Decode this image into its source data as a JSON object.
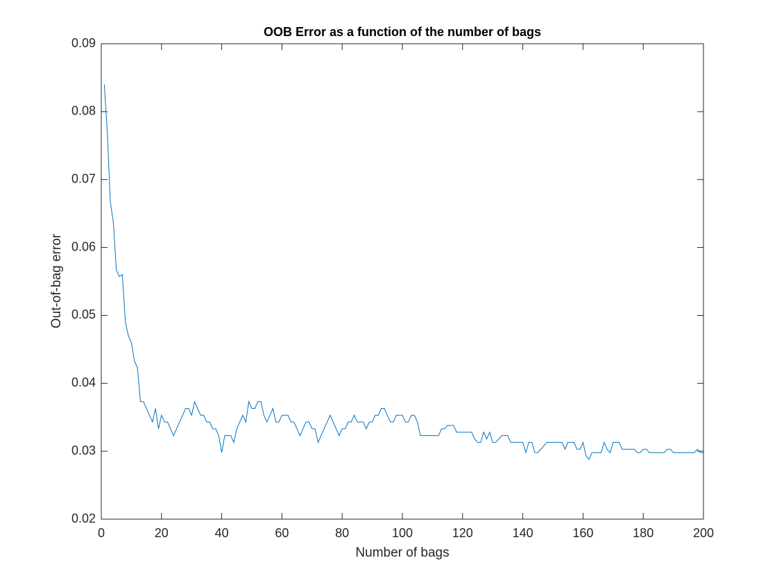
{
  "chart_data": {
    "type": "line",
    "title": "OOB Error as a function of the number of bags",
    "x_label": "Number of bags",
    "y_label": "Out-of-bag error",
    "x": [
      1,
      2,
      3,
      4,
      5,
      6,
      7,
      8,
      9,
      10,
      11,
      12,
      13,
      14,
      15,
      16,
      17,
      18,
      19,
      20,
      21,
      22,
      23,
      24,
      25,
      26,
      27,
      28,
      29,
      30,
      31,
      32,
      33,
      34,
      35,
      36,
      37,
      38,
      39,
      40,
      41,
      42,
      43,
      44,
      45,
      46,
      47,
      48,
      49,
      50,
      51,
      52,
      53,
      54,
      55,
      56,
      57,
      58,
      59,
      60,
      61,
      62,
      63,
      64,
      65,
      66,
      67,
      68,
      69,
      70,
      71,
      72,
      73,
      74,
      75,
      76,
      77,
      78,
      79,
      80,
      81,
      82,
      83,
      84,
      85,
      86,
      87,
      88,
      89,
      90,
      91,
      92,
      93,
      94,
      95,
      96,
      97,
      98,
      99,
      100,
      101,
      102,
      103,
      104,
      105,
      106,
      107,
      108,
      109,
      110,
      111,
      112,
      113,
      114,
      115,
      116,
      117,
      118,
      119,
      120,
      121,
      122,
      123,
      124,
      125,
      126,
      127,
      128,
      129,
      130,
      131,
      132,
      133,
      134,
      135,
      136,
      137,
      138,
      139,
      140,
      141,
      142,
      143,
      144,
      145,
      146,
      147,
      148,
      149,
      150,
      151,
      152,
      153,
      154,
      155,
      156,
      157,
      158,
      159,
      160,
      161,
      162,
      163,
      164,
      165,
      166,
      167,
      168,
      169,
      170,
      171,
      172,
      173,
      174,
      175,
      176,
      177,
      178,
      179,
      180,
      181,
      182,
      183,
      184,
      185,
      186,
      187,
      188,
      189,
      190,
      191,
      192,
      193,
      194,
      195,
      196,
      197,
      198,
      199,
      200
    ],
    "series": [
      {
        "name": "OOB error",
        "color": "#0072bd",
        "values": [
          0.084,
          0.077,
          0.0667,
          0.0637,
          0.0567,
          0.0557,
          0.056,
          0.049,
          0.047,
          0.046,
          0.0433,
          0.0423,
          0.0373,
          0.0373,
          0.0363,
          0.0353,
          0.0343,
          0.0363,
          0.0333,
          0.0353,
          0.0343,
          0.0343,
          0.0333,
          0.0323,
          0.0333,
          0.0343,
          0.0353,
          0.0363,
          0.0363,
          0.0353,
          0.0373,
          0.0363,
          0.0353,
          0.0353,
          0.0343,
          0.0343,
          0.0333,
          0.0333,
          0.0323,
          0.0298,
          0.0323,
          0.0323,
          0.0323,
          0.0313,
          0.0333,
          0.0343,
          0.0353,
          0.0343,
          0.0373,
          0.0363,
          0.0363,
          0.0373,
          0.0373,
          0.0353,
          0.0343,
          0.0353,
          0.0363,
          0.0343,
          0.0343,
          0.0353,
          0.0353,
          0.0353,
          0.0343,
          0.0343,
          0.0333,
          0.0323,
          0.0333,
          0.0343,
          0.0343,
          0.0333,
          0.0333,
          0.0313,
          0.0323,
          0.0333,
          0.0343,
          0.0353,
          0.0343,
          0.0333,
          0.0323,
          0.0333,
          0.0333,
          0.0343,
          0.0343,
          0.0353,
          0.0343,
          0.0343,
          0.0343,
          0.0333,
          0.0343,
          0.0343,
          0.0353,
          0.0353,
          0.0363,
          0.0363,
          0.0353,
          0.0343,
          0.0343,
          0.0353,
          0.0353,
          0.0353,
          0.0343,
          0.0343,
          0.0353,
          0.0353,
          0.0343,
          0.0323,
          0.0323,
          0.0323,
          0.0323,
          0.0323,
          0.0323,
          0.0323,
          0.0333,
          0.0333,
          0.0338,
          0.0338,
          0.0338,
          0.0328,
          0.0328,
          0.0328,
          0.0328,
          0.0328,
          0.0328,
          0.0318,
          0.0313,
          0.0313,
          0.0328,
          0.0318,
          0.0328,
          0.0313,
          0.0313,
          0.0318,
          0.0323,
          0.0323,
          0.0323,
          0.0313,
          0.0313,
          0.0313,
          0.0313,
          0.0313,
          0.0298,
          0.0313,
          0.0313,
          0.0298,
          0.0298,
          0.0303,
          0.0308,
          0.0313,
          0.0313,
          0.0313,
          0.0313,
          0.0313,
          0.0313,
          0.0303,
          0.0313,
          0.0313,
          0.0313,
          0.0303,
          0.0303,
          0.0313,
          0.0293,
          0.0288,
          0.0298,
          0.0298,
          0.0298,
          0.0298,
          0.0313,
          0.0303,
          0.0298,
          0.0313,
          0.0313,
          0.0313,
          0.0303,
          0.0303,
          0.0303,
          0.0303,
          0.0303,
          0.0298,
          0.0298,
          0.0303,
          0.0303,
          0.0298,
          0.0298,
          0.0298,
          0.0298,
          0.0298,
          0.0298,
          0.0303,
          0.0303,
          0.0298,
          0.0298,
          0.0298,
          0.0298,
          0.0298,
          0.0298,
          0.0298,
          0.0298,
          0.0303,
          0.0298,
          0.0298
        ]
      }
    ],
    "xlim": [
      0,
      200
    ],
    "xticks": [
      0,
      20,
      40,
      60,
      80,
      100,
      120,
      140,
      160,
      180,
      200
    ],
    "ylim": [
      0.02,
      0.09
    ],
    "yticks": [
      0.02,
      0.03,
      0.04,
      0.05,
      0.06,
      0.07,
      0.08,
      0.09
    ],
    "grid": false
  }
}
